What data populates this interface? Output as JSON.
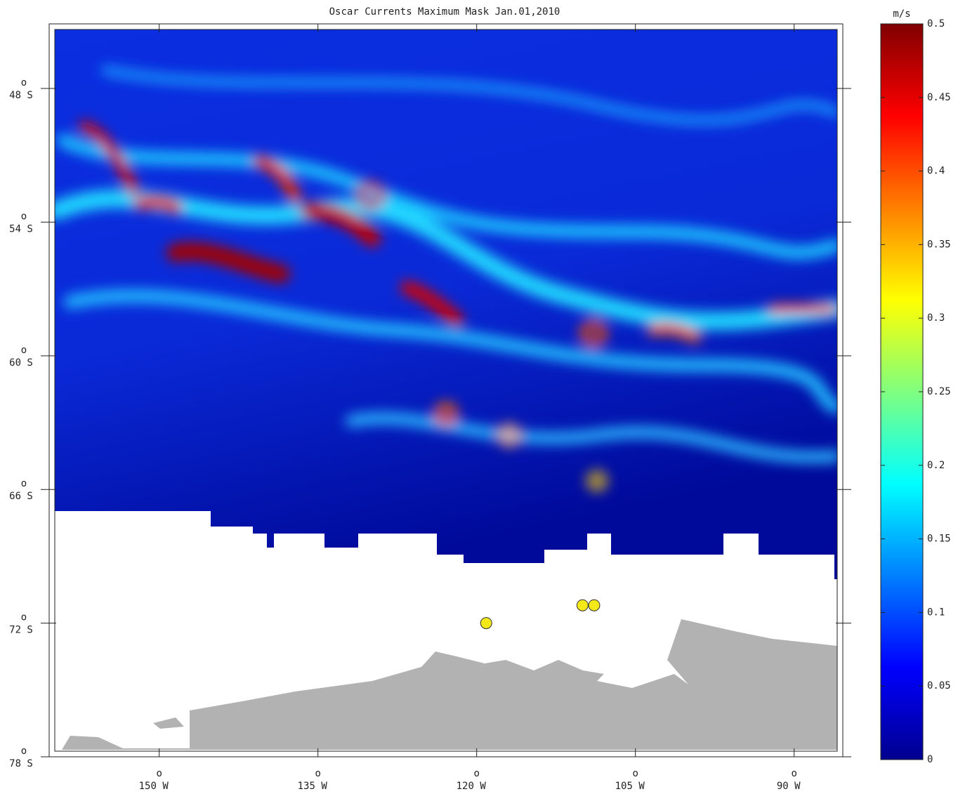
{
  "map": {
    "title": "Oscar Currents Maximum Mask Jan.01,2010",
    "degree_mark": "o",
    "xlim": [
      -160.4,
      -85.4
    ],
    "ylim": [
      -78,
      -45.1
    ],
    "xticks": [
      {
        "value": -150,
        "label": "150 W"
      },
      {
        "value": -135,
        "label": "135 W"
      },
      {
        "value": -120,
        "label": "120 W"
      },
      {
        "value": -105,
        "label": "105 W"
      },
      {
        "value": -90,
        "label": "90 W"
      }
    ],
    "yticks": [
      {
        "value": -48,
        "label": "48 S"
      },
      {
        "value": -54,
        "label": "54 S"
      },
      {
        "value": -60,
        "label": "60 S"
      },
      {
        "value": -66,
        "label": "66 S"
      },
      {
        "value": -72,
        "label": "72 S"
      },
      {
        "value": -78,
        "label": "78 S"
      }
    ],
    "colorbar": {
      "unit": "m/s",
      "lim": [
        0,
        0.5
      ],
      "ticks": [
        0,
        0.05,
        0.1,
        0.15,
        0.2,
        0.25,
        0.3,
        0.35,
        0.4,
        0.45,
        0.5
      ]
    },
    "points": {
      "color": "#f2e81a",
      "lon": [
        -119.1,
        -110.0,
        -108.9
      ],
      "lat": [
        -72.0,
        -71.2,
        -71.2
      ]
    }
  }
}
